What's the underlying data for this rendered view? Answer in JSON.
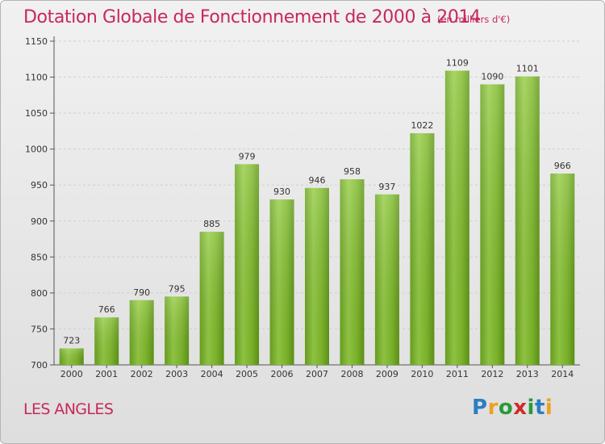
{
  "header": {
    "title": "Dotation Globale de Fonctionnement de 2000 à 2014",
    "subtitle": "(en milliers d'€)"
  },
  "footer": {
    "commune": "LES ANGLES",
    "logo_letters": [
      "P",
      "r",
      "o",
      "x",
      "i",
      "t",
      "i"
    ],
    "logo_colors": [
      "#2a7fc0",
      "#f0a020",
      "#2a9a3a",
      "#d02a2a",
      "#2a9a3a",
      "#2a7fc0",
      "#f0a020"
    ]
  },
  "chart_data": {
    "type": "bar",
    "title": "Dotation Globale de Fonctionnement de 2000 à 2014",
    "subtitle": "(en milliers d'€)",
    "xlabel": "",
    "ylabel": "",
    "categories": [
      "2000",
      "2001",
      "2002",
      "2003",
      "2004",
      "2005",
      "2006",
      "2007",
      "2008",
      "2009",
      "2010",
      "2011",
      "2012",
      "2013",
      "2014"
    ],
    "values": [
      723,
      766,
      790,
      795,
      885,
      979,
      930,
      946,
      958,
      937,
      1022,
      1109,
      1090,
      1101,
      966
    ],
    "ylim": [
      700,
      1150
    ],
    "yticks": [
      700,
      750,
      800,
      850,
      900,
      950,
      1000,
      1050,
      1100,
      1150
    ],
    "grid": true,
    "bar_color": "#7fba2a",
    "bar_color_light": "#9ed24a",
    "bar_color_dark": "#5f9a18"
  }
}
